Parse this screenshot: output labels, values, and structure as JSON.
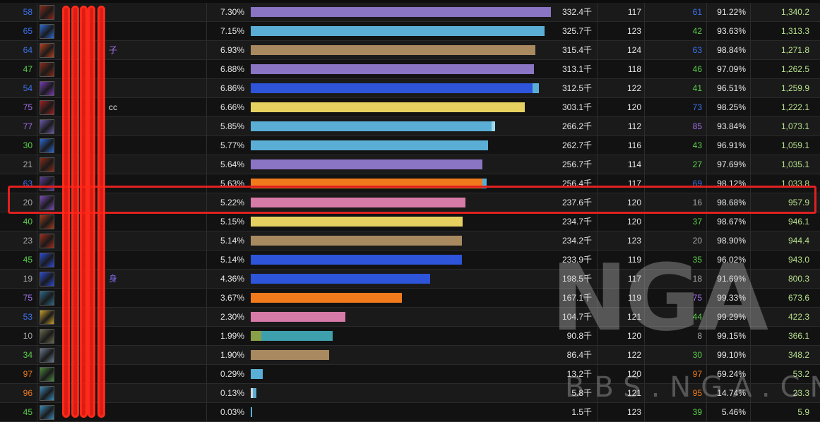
{
  "colors": {
    "purple": "#8a74c4",
    "skyblue": "#5aaed6",
    "tan": "#a88960",
    "blue": "#2d54d9",
    "yellow": "#e6d160",
    "orange": "#f07a1c",
    "pink": "#d67aa8",
    "teal": "#3fa0ad",
    "olive": "#8aa048",
    "white": "#d8d8d8"
  },
  "rows": [
    {
      "rank": "58",
      "rank_color": "#3b73f0",
      "name": "",
      "pct": "7.30%",
      "bar": {
        "value": 7.3,
        "color": "#8a74c4"
      },
      "amount": "332.4千",
      "casts": "117",
      "grade": "61",
      "grade_color": "#3b73f0",
      "acc": "91.22%",
      "dps": "1,340.2",
      "icon_color": "#8a2a16"
    },
    {
      "rank": "65",
      "rank_color": "#3b73f0",
      "name": "",
      "pct": "7.15%",
      "bar": {
        "value": 7.15,
        "color": "#5aaed6"
      },
      "amount": "325.7千",
      "casts": "123",
      "grade": "42",
      "grade_color": "#5ad04a",
      "acc": "93.63%",
      "dps": "1,313.3",
      "icon_color": "#2a6ad8"
    },
    {
      "rank": "64",
      "rank_color": "#3b73f0",
      "name": "子",
      "name_color": "#a070e8",
      "pct": "6.93%",
      "bar": {
        "value": 6.93,
        "color": "#a88960"
      },
      "amount": "315.4千",
      "casts": "124",
      "grade": "63",
      "grade_color": "#3b73f0",
      "acc": "98.84%",
      "dps": "1,271.8",
      "icon_color": "#b8401a"
    },
    {
      "rank": "47",
      "rank_color": "#5ad04a",
      "name": "",
      "pct": "6.88%",
      "bar": {
        "value": 6.88,
        "color": "#8a74c4"
      },
      "amount": "313.1千",
      "casts": "118",
      "grade": "46",
      "grade_color": "#5ad04a",
      "acc": "97.09%",
      "dps": "1,262.5",
      "icon_color": "#8a2a16"
    },
    {
      "rank": "54",
      "rank_color": "#3b73f0",
      "name": "",
      "pct": "6.86%",
      "bar": {
        "value": 6.86,
        "color": "#2d54d9",
        "extra": 0.15,
        "extra_color": "#5aaed6"
      },
      "amount": "312.5千",
      "casts": "122",
      "grade": "41",
      "grade_color": "#5ad04a",
      "acc": "96.51%",
      "dps": "1,259.9",
      "icon_color": "#7a3ab8"
    },
    {
      "rank": "75",
      "rank_color": "#a070e8",
      "name": "cc",
      "name_color": "#e6e6e6",
      "pct": "6.66%",
      "bar": {
        "value": 6.66,
        "color": "#e6d160"
      },
      "amount": "303.1千",
      "casts": "120",
      "grade": "73",
      "grade_color": "#3b73f0",
      "acc": "98.25%",
      "dps": "1,222.1",
      "icon_color": "#a02020"
    },
    {
      "rank": "77",
      "rank_color": "#a070e8",
      "name": "",
      "pct": "5.85%",
      "bar": {
        "value": 5.85,
        "color": "#5aaed6",
        "extra": 0.1,
        "extra_color": "#9fd8e8"
      },
      "amount": "266.2千",
      "casts": "112",
      "grade": "85",
      "grade_color": "#a070e8",
      "acc": "93.84%",
      "dps": "1,073.1",
      "icon_color": "#6a5aa8"
    },
    {
      "rank": "30",
      "rank_color": "#5ad04a",
      "name": "",
      "pct": "5.77%",
      "bar": {
        "value": 5.77,
        "color": "#5aaed6"
      },
      "amount": "262.7千",
      "casts": "116",
      "grade": "43",
      "grade_color": "#5ad04a",
      "acc": "96.91%",
      "dps": "1,059.1",
      "icon_color": "#2a6ad8"
    },
    {
      "rank": "21",
      "rank_color": "#a8a8a8",
      "name": "",
      "pct": "5.64%",
      "bar": {
        "value": 5.64,
        "color": "#8a74c4"
      },
      "amount": "256.7千",
      "casts": "114",
      "grade": "27",
      "grade_color": "#5ad04a",
      "acc": "97.69%",
      "dps": "1,035.1",
      "icon_color": "#8a2a16"
    },
    {
      "rank": "63",
      "rank_color": "#3b73f0",
      "name": "",
      "pct": "5.63%",
      "bar": {
        "value": 5.63,
        "color": "#f07a1c",
        "extra": 0.1,
        "extra_color": "#5aaed6"
      },
      "amount": "256.4千",
      "casts": "117",
      "grade": "69",
      "grade_color": "#3b73f0",
      "acc": "98.12%",
      "dps": "1,033.8",
      "icon_color": "#5a3a98"
    },
    {
      "rank": "20",
      "rank_color": "#a8a8a8",
      "name": "",
      "pct": "5.22%",
      "bar": {
        "value": 5.22,
        "color": "#d67aa8"
      },
      "amount": "237.6千",
      "casts": "120",
      "grade": "16",
      "grade_color": "#a8a8a8",
      "acc": "98.68%",
      "dps": "957.9",
      "icon_color": "#7a4ab8"
    },
    {
      "rank": "40",
      "rank_color": "#5ad04a",
      "name": "",
      "pct": "5.15%",
      "bar": {
        "value": 5.15,
        "color": "#e6d160"
      },
      "amount": "234.7千",
      "casts": "120",
      "grade": "37",
      "grade_color": "#5ad04a",
      "acc": "98.67%",
      "dps": "946.1",
      "icon_color": "#a03a1a"
    },
    {
      "rank": "23",
      "rank_color": "#a8a8a8",
      "name": "",
      "pct": "5.14%",
      "bar": {
        "value": 5.14,
        "color": "#a88960"
      },
      "amount": "234.2千",
      "casts": "123",
      "grade": "20",
      "grade_color": "#a8a8a8",
      "acc": "98.90%",
      "dps": "944.4",
      "icon_color": "#a02a1a"
    },
    {
      "rank": "45",
      "rank_color": "#5ad04a",
      "name": "",
      "pct": "5.14%",
      "bar": {
        "value": 5.14,
        "color": "#2d54d9"
      },
      "amount": "233.9千",
      "casts": "119",
      "grade": "35",
      "grade_color": "#5ad04a",
      "acc": "96.02%",
      "dps": "943.0",
      "icon_color": "#2a4ad8"
    },
    {
      "rank": "19",
      "rank_color": "#a8a8a8",
      "name": "身",
      "name_color": "#7a6ae8",
      "pct": "4.36%",
      "bar": {
        "value": 4.36,
        "color": "#2d54d9"
      },
      "amount": "198.5千",
      "casts": "117",
      "grade": "18",
      "grade_color": "#a8a8a8",
      "acc": "91.69%",
      "dps": "800.3",
      "icon_color": "#2a4ad8"
    },
    {
      "rank": "75",
      "rank_color": "#a070e8",
      "name": "",
      "pct": "3.67%",
      "bar": {
        "value": 3.67,
        "color": "#f07a1c"
      },
      "amount": "167.1千",
      "casts": "119",
      "grade": "75",
      "grade_color": "#a070e8",
      "acc": "99.33%",
      "dps": "673.6",
      "icon_color": "#2a6a8a"
    },
    {
      "rank": "53",
      "rank_color": "#3b73f0",
      "name": "",
      "pct": "2.30%",
      "bar": {
        "value": 2.3,
        "color": "#d67aa8"
      },
      "amount": "104.7千",
      "casts": "121",
      "grade": "44",
      "grade_color": "#5ad04a",
      "acc": "99.29%",
      "dps": "422.3",
      "icon_color": "#c8a028"
    },
    {
      "rank": "10",
      "rank_color": "#a8a8a8",
      "name": "",
      "pct": "1.99%",
      "bar": {
        "value": 0.26,
        "color": "#8aa048",
        "extra": 1.73,
        "extra_color": "#3fa0ad"
      },
      "amount": "90.8千",
      "casts": "120",
      "grade": "8",
      "grade_color": "#a8a8a8",
      "acc": "99.15%",
      "dps": "366.1",
      "icon_color": "#6a6a50"
    },
    {
      "rank": "34",
      "rank_color": "#5ad04a",
      "name": "",
      "pct": "1.90%",
      "bar": {
        "value": 1.9,
        "color": "#a88960"
      },
      "amount": "86.4千",
      "casts": "122",
      "grade": "30",
      "grade_color": "#5ad04a",
      "acc": "99.10%",
      "dps": "348.2",
      "icon_color": "#6a7a90"
    },
    {
      "rank": "97",
      "rank_color": "#f07a1c",
      "name": "",
      "pct": "0.29%",
      "bar": {
        "value": 0.29,
        "color": "#5aaed6"
      },
      "amount": "13.2千",
      "casts": "120",
      "grade": "97",
      "grade_color": "#f07a1c",
      "acc": "69.24%",
      "dps": "53.2",
      "icon_color": "#4a8a3a"
    },
    {
      "rank": "96",
      "rank_color": "#f07a1c",
      "name": "",
      "pct": "0.13%",
      "bar": {
        "value": 0.05,
        "color": "#d8d8d8",
        "extra": 0.08,
        "extra_color": "#5aaed6"
      },
      "amount": "5.8千",
      "casts": "121",
      "grade": "95",
      "grade_color": "#f07a1c",
      "acc": "14.74%",
      "dps": "23.3",
      "icon_color": "#3a8ab8"
    },
    {
      "rank": "45",
      "rank_color": "#5ad04a",
      "name": "",
      "pct": "0.03%",
      "bar": {
        "value": 0.03,
        "color": "#5aaed6"
      },
      "amount": "1.5千",
      "casts": "123",
      "grade": "39",
      "grade_color": "#5ad04a",
      "acc": "5.46%",
      "dps": "5.9",
      "icon_color": "#3a8ab8"
    }
  ],
  "bar_scale_max": 7.3,
  "watermark": {
    "logo": "NGA",
    "text": "BBS.NGA.CN"
  }
}
